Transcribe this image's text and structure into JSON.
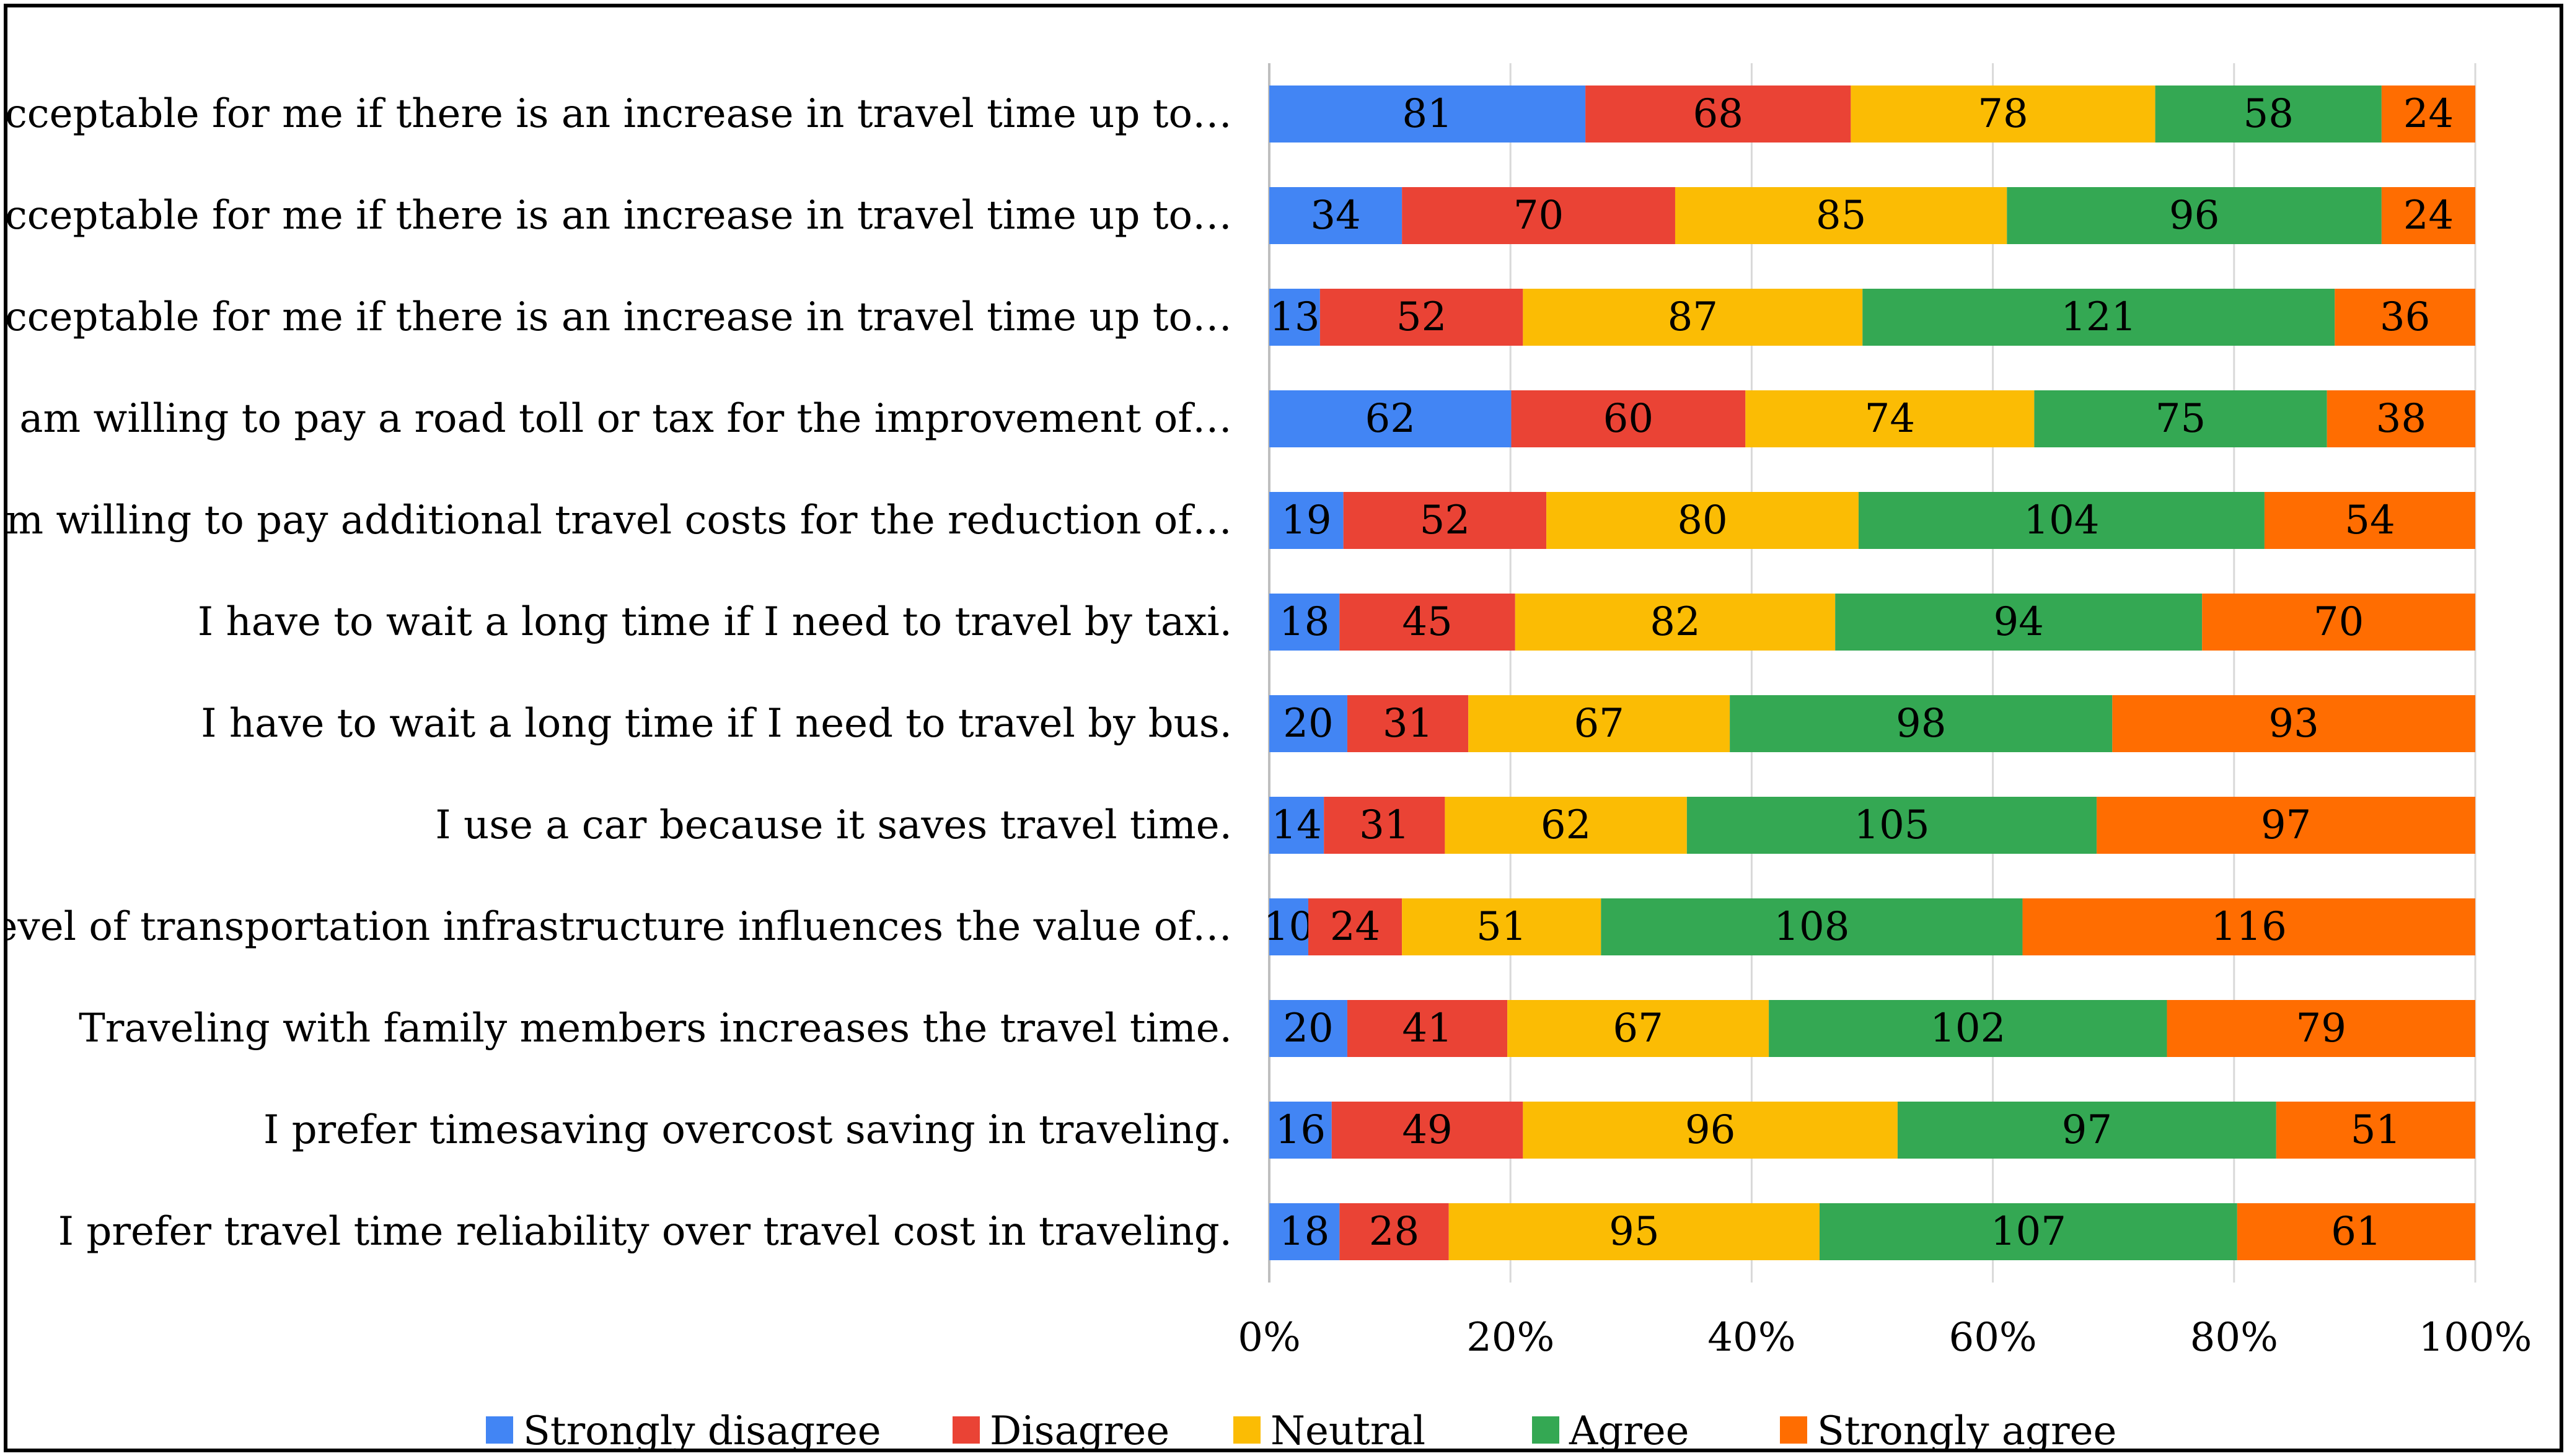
{
  "chart_data": {
    "type": "bar",
    "orientation": "horizontal",
    "stacked": "percent",
    "title": "",
    "xlabel": "",
    "ylabel": "",
    "xlim": [
      0,
      100
    ],
    "x_ticks": [
      "0%",
      "20%",
      "40%",
      "60%",
      "80%",
      "100%"
    ],
    "legend_position": "bottom",
    "categories": [
      "It is acceptable for me if there is an increase in travel time up to…",
      "It is acceptable for me if there is an increase in travel time up to…",
      "It is acceptable for me if there is an increase in travel time up to…",
      "I am willing to pay a road toll or tax for the improvement of…",
      "I am willing to pay additional travel costs for the reduction of…",
      "I have to wait a long time if I need to travel by taxi.",
      "I have to wait a long time if I need to travel by bus.",
      "I use a car because it saves travel time.",
      "The level of transportation infrastructure influences the value of…",
      "Traveling with family members increases the travel time.",
      "I prefer timesaving overcost saving in traveling.",
      "I prefer travel time reliability over travel cost in traveling."
    ],
    "series": [
      {
        "name": "Strongly disagree",
        "color": "#4285F4",
        "values": [
          81,
          34,
          13,
          62,
          19,
          18,
          20,
          14,
          10,
          20,
          16,
          18
        ]
      },
      {
        "name": "Disagree",
        "color": "#EA4335",
        "values": [
          68,
          70,
          52,
          60,
          52,
          45,
          31,
          31,
          24,
          41,
          49,
          28
        ]
      },
      {
        "name": "Neutral",
        "color": "#FBBC04",
        "values": [
          78,
          85,
          87,
          74,
          80,
          82,
          67,
          62,
          51,
          67,
          96,
          95
        ]
      },
      {
        "name": "Agree",
        "color": "#34A853",
        "values": [
          58,
          96,
          121,
          75,
          104,
          94,
          98,
          105,
          108,
          102,
          97,
          107
        ]
      },
      {
        "name": "Strongly agree",
        "color": "#FF6D01",
        "values": [
          24,
          24,
          36,
          38,
          54,
          70,
          93,
          97,
          116,
          79,
          51,
          61
        ]
      }
    ]
  }
}
